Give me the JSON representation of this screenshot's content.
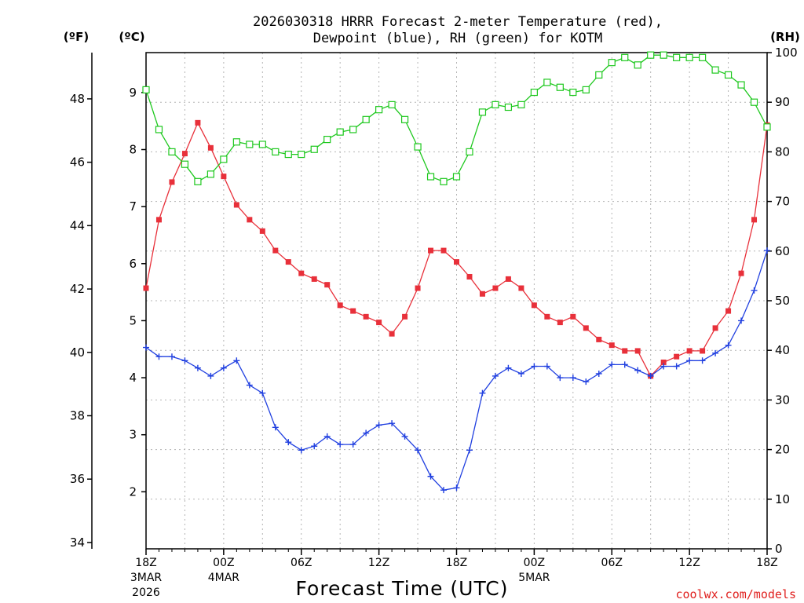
{
  "chart_data": {
    "type": "line",
    "title_line1": "2026030318 HRRR Forecast 2-meter Temperature (red),",
    "title_line2": "Dewpoint (blue), RH (green) for KOTM",
    "xlabel": "Forecast Time (UTC)",
    "credit": "coolwx.com/models",
    "units": {
      "fahrenheit": "(ºF)",
      "celsius": "(ºC)",
      "rh": "(RH)"
    },
    "celsius_axis": {
      "ylim": [
        1.0,
        9.7
      ],
      "ticks": [
        "2",
        "3",
        "4",
        "5",
        "6",
        "7",
        "8",
        "9"
      ]
    },
    "fahrenheit_axis": {
      "ylim": [
        33.8,
        49.46
      ],
      "ticks": [
        "34",
        "36",
        "38",
        "40",
        "42",
        "44",
        "46",
        "48"
      ]
    },
    "rh_axis": {
      "ylim": [
        0,
        100
      ],
      "ticks": [
        "0",
        "10",
        "20",
        "30",
        "40",
        "50",
        "60",
        "70",
        "80",
        "90",
        "100"
      ]
    },
    "x_hours_range": [
      0,
      48
    ],
    "x_ticks": [
      {
        "hour": 0,
        "label": "18Z",
        "sub1": "3MAR",
        "sub2": "2026"
      },
      {
        "hour": 6,
        "label": "00Z",
        "sub1": "4MAR",
        "sub2": ""
      },
      {
        "hour": 12,
        "label": "06Z",
        "sub1": "",
        "sub2": ""
      },
      {
        "hour": 18,
        "label": "12Z",
        "sub1": "",
        "sub2": ""
      },
      {
        "hour": 24,
        "label": "18Z",
        "sub1": "",
        "sub2": ""
      },
      {
        "hour": 30,
        "label": "00Z",
        "sub1": "5MAR",
        "sub2": ""
      },
      {
        "hour": 36,
        "label": "06Z",
        "sub1": "",
        "sub2": ""
      },
      {
        "hour": 42,
        "label": "12Z",
        "sub1": "",
        "sub2": ""
      },
      {
        "hour": 48,
        "label": "18Z",
        "sub1": "",
        "sub2": ""
      }
    ],
    "series": [
      {
        "name": "Temperature",
        "unit": "C",
        "color": "#e8303a",
        "marker": "filled-square",
        "values": [
          5.57,
          6.77,
          7.43,
          7.93,
          8.47,
          8.03,
          7.53,
          7.03,
          6.77,
          6.57,
          6.23,
          6.03,
          5.83,
          5.73,
          5.63,
          5.27,
          5.17,
          5.07,
          4.97,
          4.77,
          5.07,
          5.57,
          6.23,
          6.23,
          6.03,
          5.77,
          5.47,
          5.57,
          5.73,
          5.57,
          5.27,
          5.07,
          4.97,
          5.07,
          4.87,
          4.67,
          4.57,
          4.47,
          4.47,
          4.03,
          4.27,
          4.37,
          4.47,
          4.47,
          4.87,
          5.17,
          5.83,
          6.77,
          8.43
        ]
      },
      {
        "name": "Dewpoint",
        "unit": "C",
        "color": "#2140e0",
        "marker": "plus",
        "values": [
          4.53,
          4.37,
          4.37,
          4.3,
          4.17,
          4.03,
          4.17,
          4.3,
          3.87,
          3.73,
          3.13,
          2.87,
          2.73,
          2.8,
          2.97,
          2.83,
          2.83,
          3.03,
          3.17,
          3.2,
          2.97,
          2.73,
          2.27,
          2.03,
          2.07,
          2.73,
          3.73,
          4.03,
          4.17,
          4.07,
          4.2,
          4.2,
          4.0,
          4.0,
          3.93,
          4.07,
          4.23,
          4.23,
          4.13,
          4.03,
          4.2,
          4.2,
          4.3,
          4.3,
          4.43,
          4.57,
          5.0,
          5.53,
          6.23
        ]
      },
      {
        "name": "RH",
        "unit": "%",
        "color": "#1ec81e",
        "marker": "open-square",
        "values": [
          92.5,
          84.5,
          80.0,
          77.5,
          74.0,
          75.5,
          78.5,
          82.0,
          81.5,
          81.5,
          80.0,
          79.5,
          79.5,
          80.5,
          82.5,
          84.0,
          84.5,
          86.5,
          88.5,
          89.5,
          86.5,
          81.0,
          75.0,
          74.0,
          75.0,
          80.0,
          88.0,
          89.5,
          89.0,
          89.5,
          92.0,
          94.0,
          93.0,
          92.0,
          92.5,
          95.5,
          98.0,
          99.0,
          97.5,
          99.5,
          99.5,
          99.0,
          99.0,
          99.0,
          96.5,
          95.5,
          93.5,
          90.0,
          85.0
        ]
      }
    ]
  }
}
